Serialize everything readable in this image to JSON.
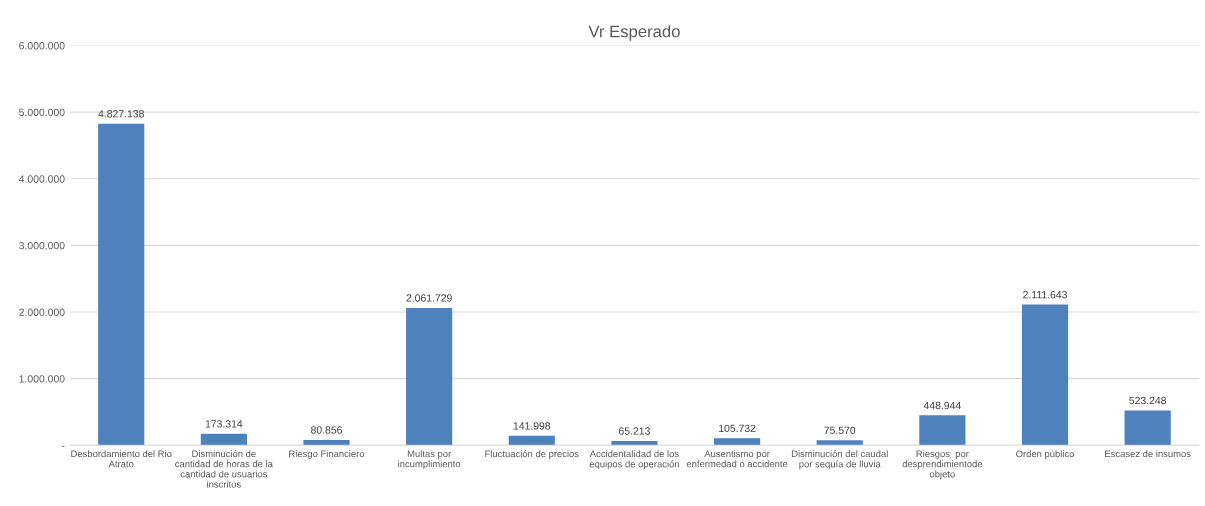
{
  "chart_data": {
    "type": "bar",
    "title": "Vr Esperado",
    "categories": [
      "Desbordamiento del Rio\nAtrato",
      "Disminución de\ncantidad de horas de la\ncantidad de usuarios\ninscritos",
      "Riesgo Financiero",
      "Multas por\nincumplimiento",
      "Fluctuación de precios",
      "Accidentalidad de los\nequipos de operación",
      "Ausentismo por\nenfermedad o accidente",
      "Disminución del caudal\npor sequía de lluvia",
      "Riesgos  por\ndesprendimientode\nobjeto",
      "Orden público",
      "Escasez de insumos"
    ],
    "values": [
      4827138,
      173314,
      80856,
      2061729,
      141998,
      65213,
      105732,
      75570,
      448944,
      2111643,
      523248
    ],
    "value_labels": [
      "4.827.138",
      "173.314",
      "80.856",
      "2.061.729",
      "141.998",
      "65.213",
      "105.732",
      "75.570",
      "448.944",
      "2.111.643",
      "523.248"
    ],
    "color": "#4f81bd",
    "ylim": [
      0,
      6000000
    ],
    "yticks": [
      {
        "value": 0,
        "label": "-"
      },
      {
        "value": 1000000,
        "label": "1.000.000"
      },
      {
        "value": 2000000,
        "label": "2.000.000"
      },
      {
        "value": 3000000,
        "label": "3.000.000"
      },
      {
        "value": 4000000,
        "label": "4.000.000"
      },
      {
        "value": 5000000,
        "label": "5.000.000"
      },
      {
        "value": 6000000,
        "label": "6.000.000"
      }
    ],
    "grid": "y"
  }
}
